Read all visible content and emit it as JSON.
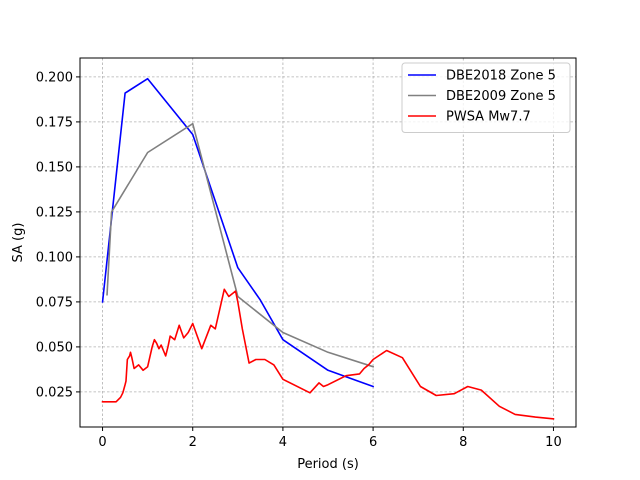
{
  "chart_data": {
    "type": "line",
    "title": "",
    "xlabel": "Period (s)",
    "ylabel": "SA (g)",
    "xlim": [
      -0.5,
      10.5
    ],
    "ylim": [
      0.0055,
      0.2105
    ],
    "xticks": [
      0,
      2,
      4,
      6,
      8,
      10
    ],
    "xtick_labels": [
      "0",
      "2",
      "4",
      "6",
      "8",
      "10"
    ],
    "yticks": [
      0.025,
      0.05,
      0.075,
      0.1,
      0.125,
      0.15,
      0.175,
      0.2
    ],
    "ytick_labels": [
      "0.025",
      "0.050",
      "0.075",
      "0.100",
      "0.125",
      "0.150",
      "0.175",
      "0.200"
    ],
    "grid": true,
    "legend_position": "upper right",
    "series": [
      {
        "name": "DBE2018 Zone 5",
        "color": "#0000ff",
        "x": [
          0,
          0.5,
          1.0,
          2.0,
          3.0,
          3.5,
          4.0,
          5.0,
          6.0
        ],
        "y": [
          0.075,
          0.191,
          0.199,
          0.168,
          0.094,
          0.076,
          0.054,
          0.037,
          0.028
        ]
      },
      {
        "name": "DBE2009 Zone 5",
        "color": "#808080",
        "x": [
          0.1,
          0.2,
          1.0,
          2.0,
          3.0,
          4.0,
          5.0,
          6.0
        ],
        "y": [
          0.079,
          0.125,
          0.158,
          0.174,
          0.078,
          0.058,
          0.047,
          0.039
        ]
      },
      {
        "name": "PWSA Mw7.7",
        "color": "#ff0000",
        "x": [
          0,
          0.3,
          0.4,
          0.45,
          0.5,
          0.52,
          0.55,
          0.6,
          0.62,
          0.65,
          0.7,
          0.8,
          0.9,
          1.0,
          1.1,
          1.15,
          1.2,
          1.25,
          1.3,
          1.35,
          1.4,
          1.45,
          1.5,
          1.6,
          1.65,
          1.7,
          1.8,
          1.9,
          2.0,
          2.1,
          2.2,
          2.4,
          2.5,
          2.7,
          2.8,
          2.95,
          3.0,
          3.1,
          3.25,
          3.4,
          3.6,
          3.8,
          4.0,
          4.6,
          4.8,
          4.9,
          5.0,
          5.4,
          5.7,
          5.8,
          5.9,
          6.0,
          6.3,
          6.65,
          7.05,
          7.4,
          7.8,
          8.1,
          8.4,
          8.8,
          9.15,
          9.6,
          10.0
        ],
        "y": [
          0.0195,
          0.0195,
          0.022,
          0.0245,
          0.029,
          0.031,
          0.043,
          0.045,
          0.047,
          0.044,
          0.038,
          0.04,
          0.037,
          0.039,
          0.05,
          0.054,
          0.052,
          0.049,
          0.051,
          0.048,
          0.045,
          0.05,
          0.056,
          0.054,
          0.058,
          0.062,
          0.055,
          0.058,
          0.063,
          0.056,
          0.049,
          0.062,
          0.06,
          0.082,
          0.078,
          0.081,
          0.075,
          0.06,
          0.041,
          0.043,
          0.043,
          0.04,
          0.032,
          0.0245,
          0.03,
          0.028,
          0.029,
          0.034,
          0.035,
          0.038,
          0.04,
          0.043,
          0.048,
          0.044,
          0.028,
          0.023,
          0.024,
          0.028,
          0.026,
          0.017,
          0.0125,
          0.011,
          0.01
        ]
      }
    ]
  }
}
